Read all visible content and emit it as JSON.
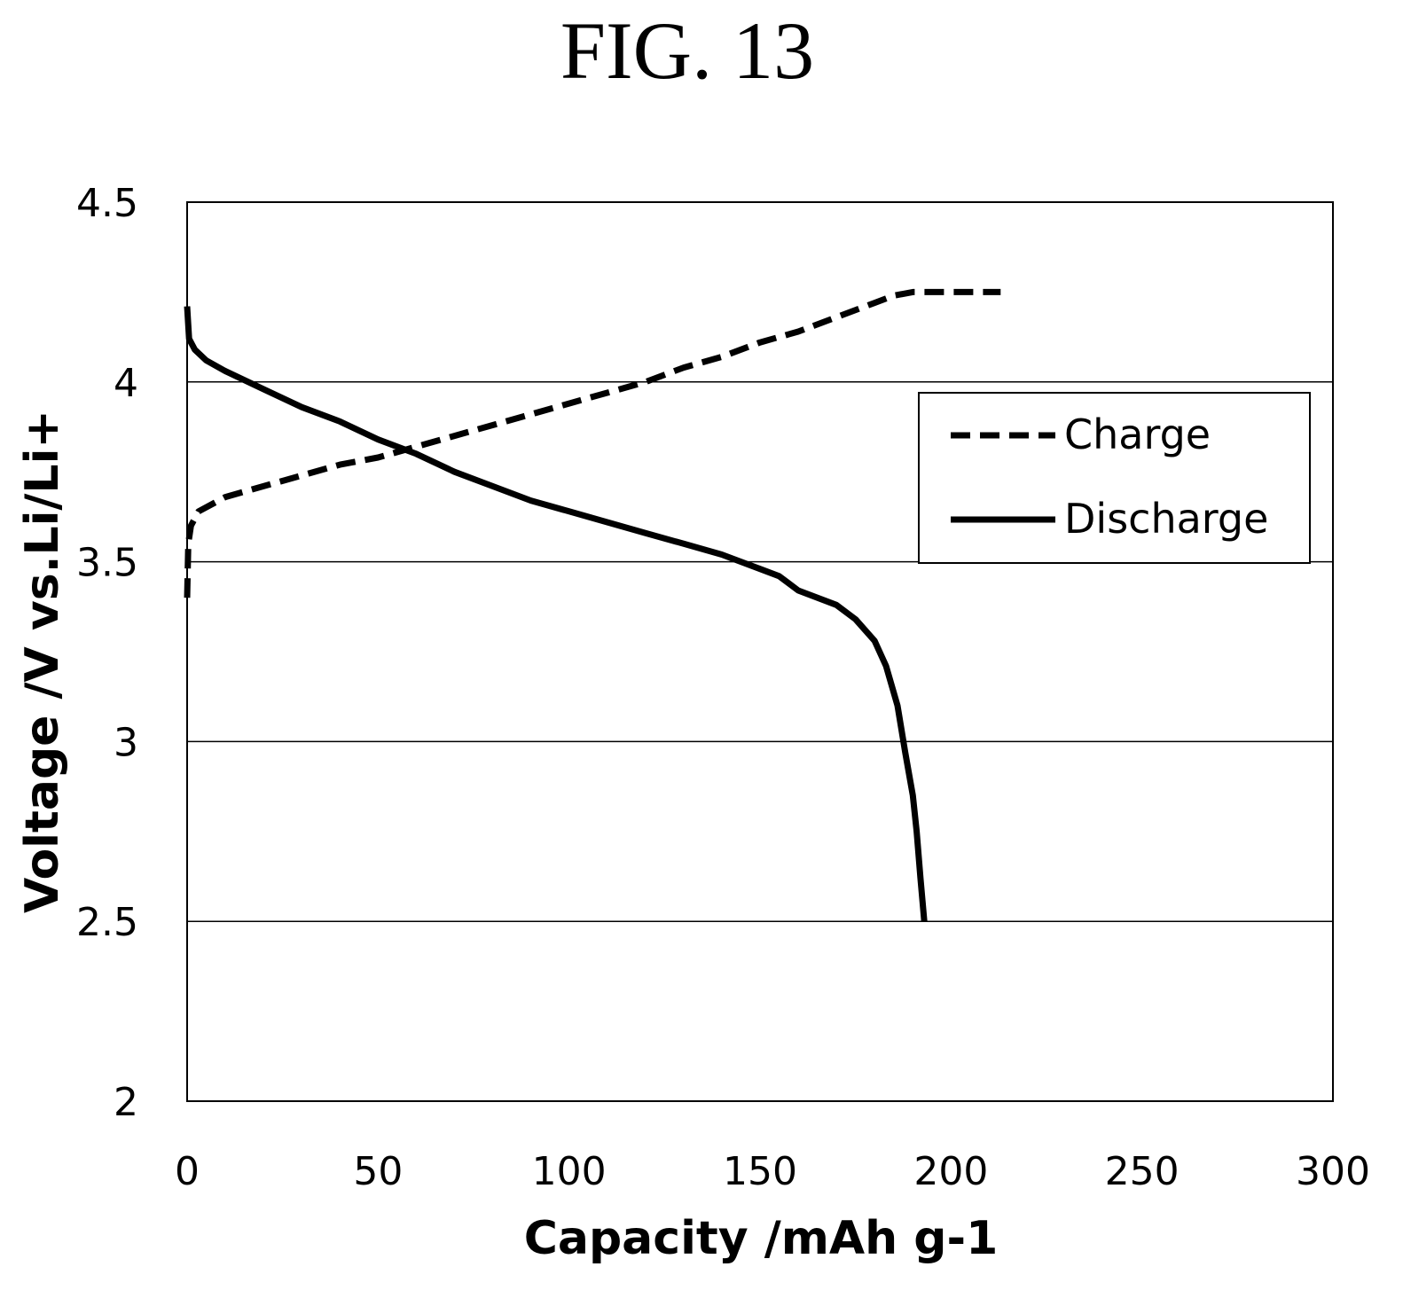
{
  "chart_data": {
    "type": "line",
    "title": "FIG. 13",
    "xlabel": "Capacity /mAh g-1",
    "ylabel": "Voltage /V vs.Li/Li+",
    "xlim": [
      0,
      300
    ],
    "ylim": [
      2,
      4.5
    ],
    "x_ticks": [
      0,
      50,
      100,
      150,
      200,
      250,
      300
    ],
    "x_tick_labels": [
      "0",
      "50",
      "100",
      "150",
      "200",
      "250",
      "300"
    ],
    "y_ticks": [
      2,
      2.5,
      3,
      3.5,
      4,
      4.5
    ],
    "y_tick_labels": [
      "2",
      "2.5",
      "3",
      "3.5",
      "4",
      "4.5"
    ],
    "grid": "horizontal",
    "legend_position": "right",
    "series": [
      {
        "name": "Charge",
        "style": "dashed",
        "color": "#000000",
        "x": [
          0,
          0.3,
          1,
          3,
          10,
          20,
          30,
          40,
          50,
          60,
          70,
          80,
          90,
          100,
          110,
          120,
          130,
          140,
          150,
          160,
          170,
          180,
          185,
          190,
          200,
          213
        ],
        "y": [
          3.4,
          3.55,
          3.6,
          3.64,
          3.68,
          3.71,
          3.74,
          3.77,
          3.79,
          3.82,
          3.85,
          3.88,
          3.91,
          3.94,
          3.97,
          4.0,
          4.04,
          4.07,
          4.11,
          4.14,
          4.18,
          4.22,
          4.24,
          4.25,
          4.25,
          4.25
        ]
      },
      {
        "name": "Discharge",
        "style": "solid",
        "color": "#000000",
        "x": [
          0,
          0.5,
          2,
          5,
          10,
          20,
          30,
          40,
          50,
          60,
          70,
          80,
          90,
          100,
          110,
          120,
          130,
          140,
          150,
          155,
          160,
          170,
          175,
          180,
          183,
          186,
          188,
          190,
          191,
          192,
          193
        ],
        "y": [
          4.21,
          4.12,
          4.09,
          4.06,
          4.03,
          3.98,
          3.93,
          3.89,
          3.84,
          3.8,
          3.75,
          3.71,
          3.67,
          3.64,
          3.61,
          3.58,
          3.55,
          3.52,
          3.48,
          3.46,
          3.42,
          3.38,
          3.34,
          3.28,
          3.21,
          3.1,
          2.97,
          2.85,
          2.75,
          2.62,
          2.5
        ]
      }
    ]
  }
}
